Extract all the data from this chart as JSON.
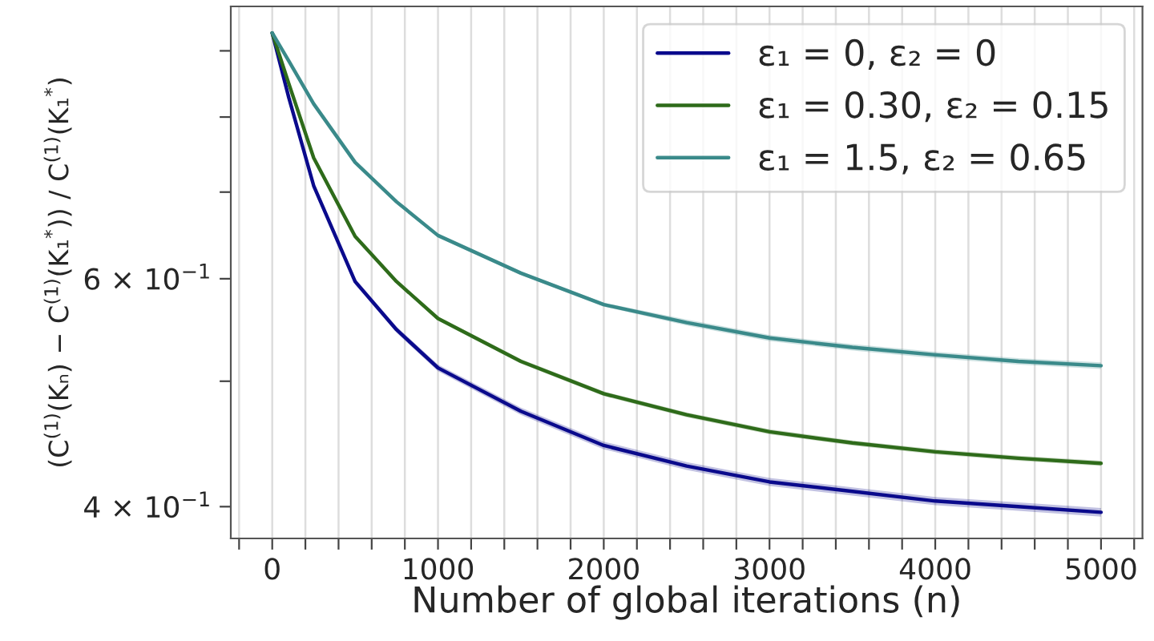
{
  "chart_data": {
    "type": "line",
    "xlabel": "Number of global iterations (n)",
    "ylabel": "(C$^{(1)}$(Kₙ) − C$^{(1)}$(K₁$^{*}$)) / C$^{(1)}$(K₁$^{*}$)",
    "x": [
      0,
      100,
      250,
      500,
      750,
      1000,
      1500,
      2000,
      2500,
      3000,
      3500,
      4000,
      4500,
      5000
    ],
    "series": [
      {
        "name": "ε₁ = 0, ε₂ = 0",
        "color": "#0a0a8c",
        "values": [
          0.929,
          0.828,
          0.708,
          0.597,
          0.548,
          0.512,
          0.474,
          0.446,
          0.43,
          0.418,
          0.411,
          0.404,
          0.4,
          0.396
        ],
        "lower": [
          0.927,
          0.826,
          0.705,
          0.594,
          0.545,
          0.509,
          0.471,
          0.443,
          0.427,
          0.415,
          0.408,
          0.401,
          0.397,
          0.393
        ],
        "upper": [
          0.931,
          0.83,
          0.711,
          0.6,
          0.551,
          0.515,
          0.477,
          0.449,
          0.433,
          0.421,
          0.414,
          0.407,
          0.403,
          0.399
        ]
      },
      {
        "name": "ε₁ = 0.30, ε₂ = 0.15",
        "color": "#2e6b1a",
        "values": [
          0.929,
          0.849,
          0.744,
          0.647,
          0.597,
          0.559,
          0.518,
          0.489,
          0.471,
          0.457,
          0.448,
          0.441,
          0.436,
          0.432
        ],
        "lower": [
          0.927,
          0.847,
          0.742,
          0.645,
          0.595,
          0.557,
          0.516,
          0.487,
          0.469,
          0.455,
          0.446,
          0.439,
          0.434,
          0.43
        ],
        "upper": [
          0.931,
          0.851,
          0.746,
          0.649,
          0.599,
          0.561,
          0.52,
          0.491,
          0.473,
          0.459,
          0.45,
          0.443,
          0.438,
          0.434
        ]
      },
      {
        "name": "ε₁ = 1.5, ε₂ = 0.65",
        "color": "#3a8a8a",
        "values": [
          0.929,
          0.884,
          0.819,
          0.738,
          0.688,
          0.648,
          0.606,
          0.573,
          0.555,
          0.54,
          0.531,
          0.524,
          0.518,
          0.514
        ],
        "lower": [
          0.927,
          0.882,
          0.817,
          0.736,
          0.686,
          0.646,
          0.604,
          0.571,
          0.552,
          0.537,
          0.528,
          0.521,
          0.515,
          0.511
        ],
        "upper": [
          0.931,
          0.886,
          0.821,
          0.74,
          0.69,
          0.65,
          0.608,
          0.575,
          0.558,
          0.543,
          0.534,
          0.527,
          0.521,
          0.517
        ]
      }
    ],
    "log": "y",
    "xlim": [
      -250,
      5250
    ],
    "ylim": [
      0.378,
      0.974
    ],
    "xticks": [
      {
        "value": -200,
        "label": null
      },
      0,
      {
        "value": 200,
        "label": null
      },
      {
        "value": 400,
        "label": null
      },
      {
        "value": 600,
        "label": null
      },
      {
        "value": 800,
        "label": null
      },
      1000,
      {
        "value": 1200,
        "label": null
      },
      {
        "value": 1400,
        "label": null
      },
      {
        "value": 1600,
        "label": null
      },
      {
        "value": 1800,
        "label": null
      },
      2000,
      {
        "value": 2200,
        "label": null
      },
      {
        "value": 2400,
        "label": null
      },
      {
        "value": 2600,
        "label": null
      },
      {
        "value": 2800,
        "label": null
      },
      3000,
      {
        "value": 3200,
        "label": null
      },
      {
        "value": 3400,
        "label": null
      },
      {
        "value": 3600,
        "label": null
      },
      {
        "value": 3800,
        "label": null
      },
      4000,
      {
        "value": 4200,
        "label": null
      },
      {
        "value": 4400,
        "label": null
      },
      {
        "value": 4600,
        "label": null
      },
      {
        "value": 4800,
        "label": null
      },
      5000,
      {
        "value": 5200,
        "label": null
      }
    ],
    "yticks": [
      {
        "value": 0.4,
        "label": "4 × 10$^{−1}$"
      },
      {
        "value": 0.5,
        "label": null
      },
      {
        "value": 0.6,
        "label": "6 × 10$^{−1}$"
      },
      {
        "value": 0.7,
        "label": null
      },
      {
        "value": 0.8,
        "label": null
      },
      {
        "value": 0.9,
        "label": null
      }
    ],
    "grid": "x",
    "legend": "top right",
    "marker": "none",
    "line_style": "solid"
  }
}
